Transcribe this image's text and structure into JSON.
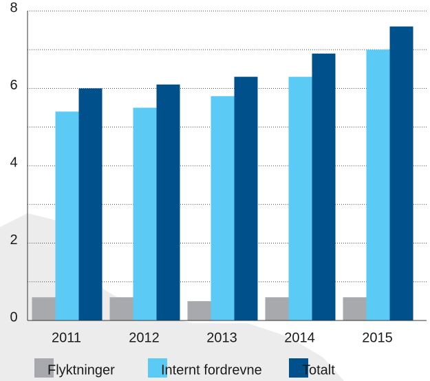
{
  "chart_data": {
    "type": "bar",
    "categories": [
      "2011",
      "2012",
      "2013",
      "2014",
      "2015"
    ],
    "series": [
      {
        "name": "Flyktninger",
        "color": "#a7a9ac",
        "values": [
          0.6,
          0.6,
          0.5,
          0.6,
          0.6
        ]
      },
      {
        "name": "Internt fordrevne",
        "color": "#5bcbf5",
        "values": [
          5.4,
          5.5,
          5.8,
          6.3,
          7.0
        ]
      },
      {
        "name": "Totalt",
        "color": "#00508c",
        "values": [
          6.0,
          6.1,
          6.3,
          6.9,
          7.6
        ]
      }
    ],
    "ylim": [
      0,
      8
    ],
    "yticks": [
      0,
      2,
      4,
      6,
      8
    ],
    "minor_yticks": [
      1,
      3,
      5,
      7
    ],
    "grid": true,
    "legend": "bottom"
  }
}
